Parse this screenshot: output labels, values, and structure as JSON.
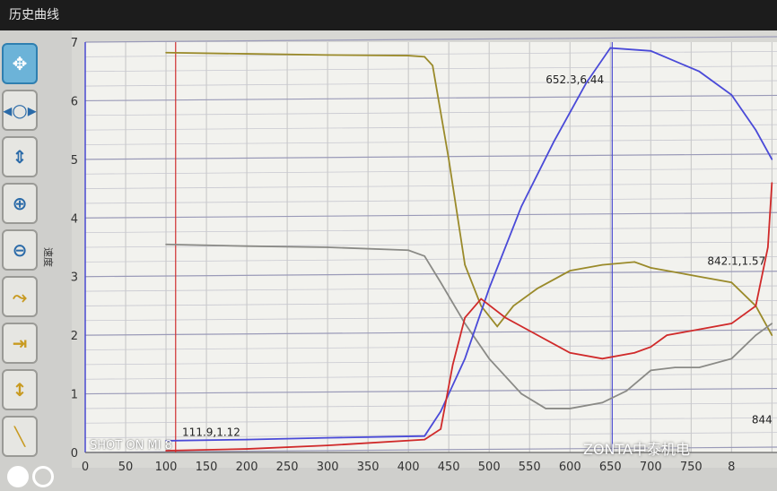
{
  "window": {
    "title": "历史曲线"
  },
  "toolbar": {
    "buttons": [
      {
        "icon": "pan-all-icon",
        "glyph": "✥",
        "active": true
      },
      {
        "icon": "pan-horizontal-icon",
        "glyph": "◂○▸"
      },
      {
        "icon": "pan-vertical-icon",
        "glyph": "⇕"
      },
      {
        "icon": "zoom-in-icon",
        "glyph": "⊕"
      },
      {
        "icon": "zoom-out-icon",
        "glyph": "⊖"
      },
      {
        "icon": "zoom-x-icon",
        "glyph": "⤳"
      },
      {
        "icon": "fit-x-icon",
        "glyph": "⇥"
      },
      {
        "icon": "fit-y-icon",
        "glyph": "↕"
      },
      {
        "icon": "reset-icon",
        "glyph": "╲"
      }
    ]
  },
  "overlay": {
    "watermark": "ZONTA中泰机电",
    "camera": "SHOT ON MI 8"
  },
  "chart_data": {
    "type": "line",
    "ylabel": "速度",
    "xlabel": "",
    "xlim": [
      0,
      850
    ],
    "ylim": [
      0,
      7
    ],
    "xticks": [
      "0",
      "50",
      "100",
      "150",
      "200",
      "250",
      "300",
      "350",
      "400",
      "450",
      "500",
      "550",
      "600",
      "650",
      "700",
      "750",
      "8"
    ],
    "yticks": [
      "0",
      "1",
      "2",
      "3",
      "4",
      "5",
      "6",
      "7"
    ],
    "grid": true,
    "cursors": [
      {
        "x": 111.9,
        "color": "#d03030"
      },
      {
        "x": 652.3,
        "color": "#4a4ad0"
      }
    ],
    "annotations": [
      {
        "text": "111.9,1.12",
        "x": 120,
        "y": 0.28
      },
      {
        "text": "652.3,6.44",
        "x": 570,
        "y": 6.3
      },
      {
        "text": "842.1,1.57",
        "x": 770,
        "y": 3.2
      },
      {
        "text": "844",
        "x": 825,
        "y": 0.5
      }
    ],
    "series": [
      {
        "color": "#9a8a2a",
        "x": [
          100,
          200,
          300,
          400,
          420,
          430,
          450,
          470,
          490,
          510,
          530,
          560,
          600,
          640,
          680,
          700,
          720,
          760,
          800,
          830,
          850
        ],
        "y": [
          6.82,
          6.8,
          6.78,
          6.77,
          6.75,
          6.6,
          5.0,
          3.2,
          2.5,
          2.15,
          2.5,
          2.8,
          3.1,
          3.2,
          3.25,
          3.15,
          3.1,
          3.0,
          2.9,
          2.5,
          2.0
        ]
      },
      {
        "color": "#8a8a86",
        "x": [
          100,
          200,
          300,
          400,
          420,
          440,
          470,
          500,
          540,
          570,
          600,
          640,
          670,
          700,
          730,
          760,
          800,
          830,
          850
        ],
        "y": [
          3.55,
          3.52,
          3.5,
          3.45,
          3.35,
          2.9,
          2.2,
          1.6,
          1.0,
          0.75,
          0.75,
          0.85,
          1.05,
          1.4,
          1.45,
          1.45,
          1.6,
          2.0,
          2.2
        ]
      },
      {
        "color": "#4a4ad8",
        "x": [
          100,
          200,
          300,
          420,
          440,
          470,
          500,
          540,
          580,
          620,
          650,
          700,
          760,
          800,
          830,
          850
        ],
        "y": [
          0.2,
          0.22,
          0.25,
          0.28,
          0.7,
          1.6,
          2.8,
          4.2,
          5.3,
          6.3,
          6.9,
          6.85,
          6.5,
          6.1,
          5.5,
          5.0
        ]
      },
      {
        "color": "#d02a2a",
        "x": [
          100,
          200,
          300,
          420,
          440,
          455,
          470,
          490,
          520,
          560,
          600,
          640,
          680,
          700,
          720,
          760,
          800,
          830,
          845,
          850
        ],
        "y": [
          0.03,
          0.06,
          0.12,
          0.22,
          0.4,
          1.5,
          2.3,
          2.62,
          2.3,
          2.0,
          1.7,
          1.6,
          1.7,
          1.8,
          2.0,
          2.1,
          2.2,
          2.5,
          3.5,
          4.6
        ]
      }
    ]
  }
}
